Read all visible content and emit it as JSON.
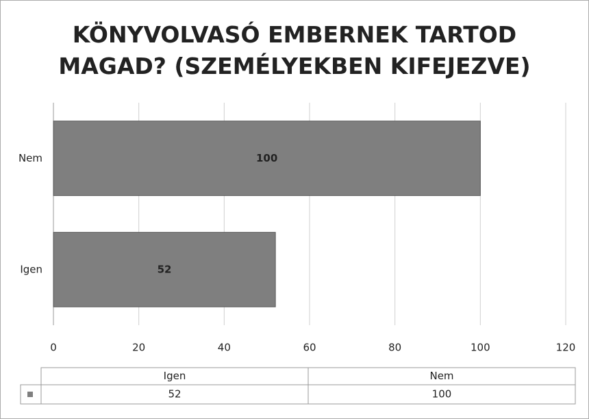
{
  "chart_data": {
    "type": "bar",
    "orientation": "horizontal",
    "title": "KÖNYVOLVASÓ EMBERNEK TARTOD MAGAD? (SZEMÉLYEKBEN KIFEJEZVE)",
    "categories": [
      "Igen",
      "Nem"
    ],
    "values": [
      52,
      100
    ],
    "color": "#7f7f7f",
    "xlim": [
      0,
      120
    ],
    "xticks": [
      0,
      20,
      40,
      60,
      80,
      100,
      120
    ],
    "grid": true,
    "data_table": true
  }
}
